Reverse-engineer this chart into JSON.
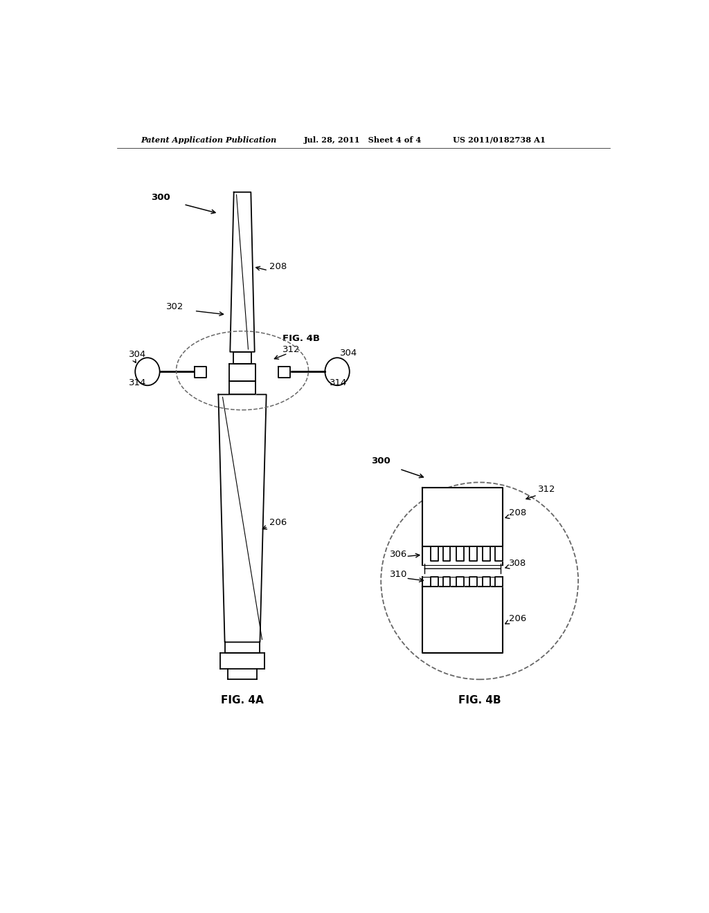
{
  "bg_color": "#ffffff",
  "header_left": "Patent Application Publication",
  "header_mid": "Jul. 28, 2011   Sheet 4 of 4",
  "header_right": "US 2011/0182738 A1",
  "fig4a_label": "FIG. 4A",
  "fig4b_label": "FIG. 4B",
  "line_color": "#000000",
  "text_color": "#000000",
  "dashed_color": "#666666",
  "lw_main": 1.3,
  "lw_inner": 0.8
}
